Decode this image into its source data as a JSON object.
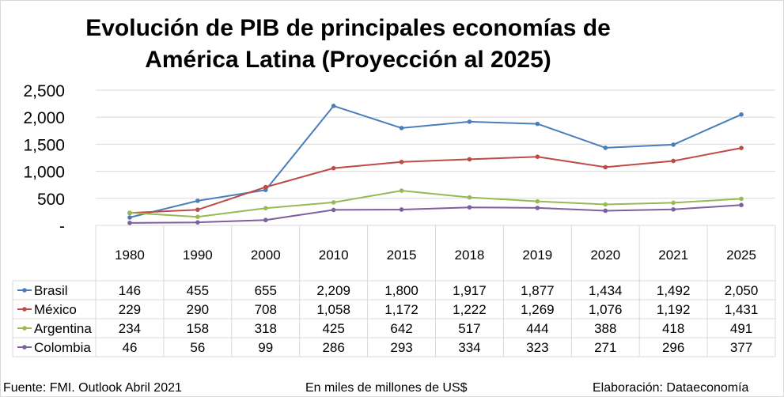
{
  "title_line1": "Evolución de PIB de principales economías de",
  "title_line2": "América Latina (Proyección al 2025)",
  "footer": {
    "source": "Fuente: FMI. Outlook Abril 2021",
    "units": "En miles de millones de US$",
    "credit": "Elaboración: Dataeconomía"
  },
  "chart_data": {
    "type": "line",
    "title": "Evolución de PIB de principales economías de América Latina (Proyección al 2025)",
    "categories": [
      "1980",
      "1990",
      "2000",
      "2010",
      "2015",
      "2018",
      "2019",
      "2020",
      "2021",
      "2025"
    ],
    "y_ticks": [
      {
        "value": 0,
        "label": "-"
      },
      {
        "value": 500,
        "label": "500"
      },
      {
        "value": 1000,
        "label": "1,000"
      },
      {
        "value": 1500,
        "label": "1,500"
      },
      {
        "value": 2000,
        "label": "2,000"
      },
      {
        "value": 2500,
        "label": "2,500"
      }
    ],
    "ylim": [
      0,
      2500
    ],
    "grid": true,
    "legend": "data-table",
    "series": [
      {
        "name": "Brasil",
        "color": "#4a7ebb",
        "values": [
          146,
          455,
          655,
          2209,
          1800,
          1917,
          1877,
          1434,
          1492,
          2050
        ],
        "labels": [
          "146",
          "455",
          "655",
          "2,209",
          "1,800",
          "1,917",
          "1,877",
          "1,434",
          "1,492",
          "2,050"
        ]
      },
      {
        "name": "México",
        "color": "#be4b48",
        "values": [
          229,
          290,
          708,
          1058,
          1172,
          1222,
          1269,
          1076,
          1192,
          1431
        ],
        "labels": [
          "229",
          "290",
          "708",
          "1,058",
          "1,172",
          "1,222",
          "1,269",
          "1,076",
          "1,192",
          "1,431"
        ]
      },
      {
        "name": "Argentina",
        "color": "#98b954",
        "values": [
          234,
          158,
          318,
          425,
          642,
          517,
          444,
          388,
          418,
          491
        ],
        "labels": [
          "234",
          "158",
          "318",
          "425",
          "642",
          "517",
          "444",
          "388",
          "418",
          "491"
        ]
      },
      {
        "name": "Colombia",
        "color": "#7d60a0",
        "values": [
          46,
          56,
          99,
          286,
          293,
          334,
          323,
          271,
          296,
          377
        ],
        "labels": [
          "46",
          "56",
          "99",
          "286",
          "293",
          "334",
          "323",
          "271",
          "296",
          "377"
        ]
      }
    ]
  }
}
